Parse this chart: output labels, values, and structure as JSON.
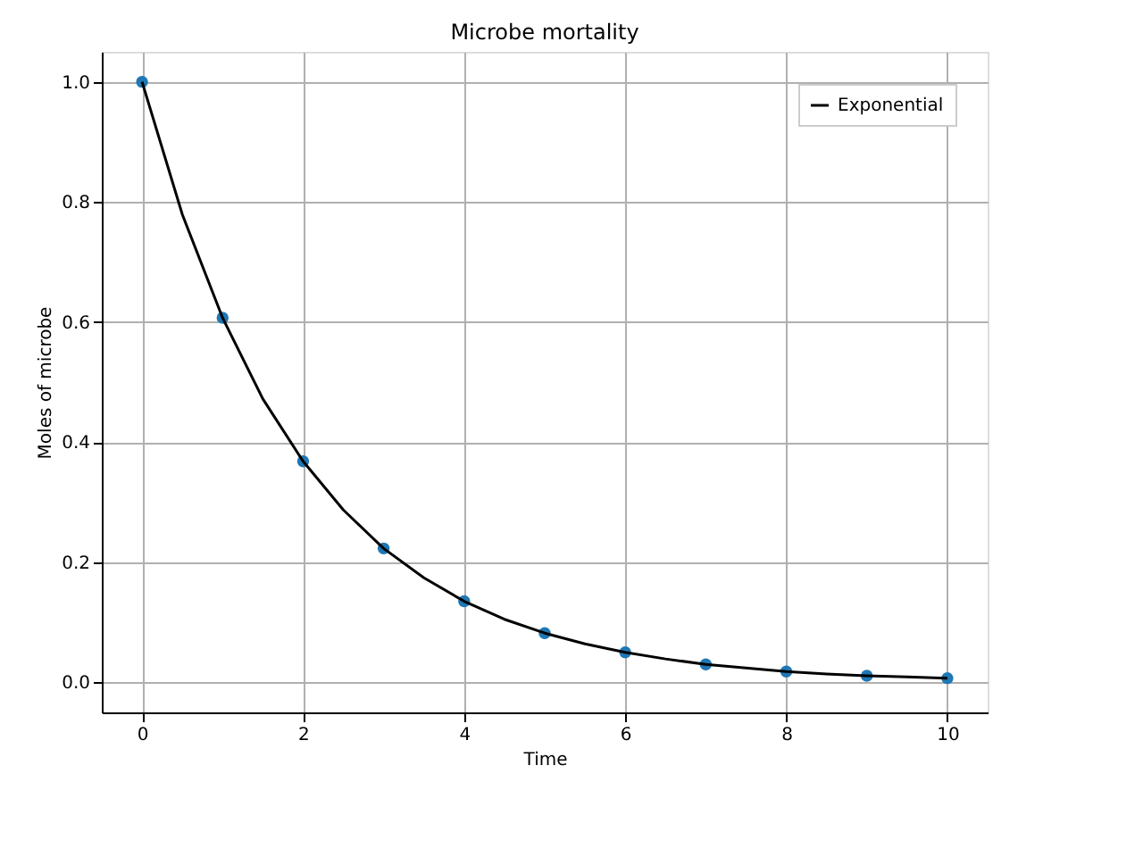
{
  "chart_data": {
    "type": "scatter",
    "title": "Microbe mortality",
    "xlabel": "Time",
    "ylabel": "Moles of microbe",
    "x": [
      0,
      1,
      2,
      3,
      4,
      5,
      6,
      7,
      8,
      9,
      10
    ],
    "series": [
      {
        "color": "#1f77b4",
        "marker": "circle",
        "values": [
          1.0,
          0.607,
          0.368,
          0.223,
          0.135,
          0.082,
          0.05,
          0.03,
          0.018,
          0.011,
          0.007
        ]
      },
      {
        "type": "line",
        "name": "Exponential",
        "color": "#000000",
        "line_style": "solid",
        "x": [
          0,
          0.5,
          1,
          1.5,
          2,
          2.5,
          3,
          3.5,
          4,
          4.5,
          5,
          5.5,
          6,
          6.5,
          7,
          7.5,
          8,
          8.5,
          9,
          9.5,
          10
        ],
        "values": [
          1.0,
          0.779,
          0.607,
          0.472,
          0.368,
          0.287,
          0.223,
          0.174,
          0.135,
          0.105,
          0.082,
          0.064,
          0.05,
          0.039,
          0.03,
          0.024,
          0.018,
          0.014,
          0.011,
          0.009,
          0.007
        ]
      }
    ],
    "xlim": [
      -0.5,
      10.5
    ],
    "xticks": [
      0,
      2,
      4,
      6,
      8,
      10
    ],
    "ylim": [
      -0.05,
      1.05
    ],
    "yticks": [
      {
        "value": 0,
        "label": "0.0"
      },
      {
        "value": 0.2,
        "label": "0.2"
      },
      {
        "value": 0.4,
        "label": "0.4"
      },
      {
        "value": 0.6,
        "label": "0.6"
      },
      {
        "value": 0.8,
        "label": "0.8"
      },
      {
        "value": 1,
        "label": "1.0"
      }
    ],
    "grid": true,
    "legend": "top right"
  }
}
